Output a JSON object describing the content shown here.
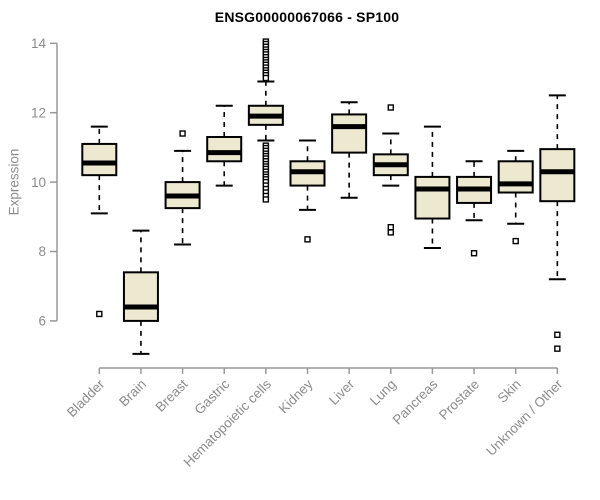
{
  "chart_data": {
    "type": "boxplot",
    "title": "ENSG00000067066 - SP100",
    "ylabel": "Expression",
    "xlabel": "",
    "ylim": [
      5,
      14.2
    ],
    "yticks": [
      6,
      8,
      10,
      12,
      14
    ],
    "grid": false,
    "legend": "none",
    "categories": [
      "Bladder",
      "Brain",
      "Breast",
      "Gastric",
      "Hematopoietic cells",
      "Kidney",
      "Liver",
      "Lung",
      "Pancreas",
      "Prostate",
      "Skin",
      "Unknown / Other"
    ],
    "boxes": [
      {
        "category": "Bladder",
        "low": 9.1,
        "q1": 10.2,
        "median": 10.55,
        "q3": 11.1,
        "high": 11.6,
        "outliers": [
          6.2
        ]
      },
      {
        "category": "Brain",
        "low": 5.05,
        "q1": 6.0,
        "median": 6.4,
        "q3": 7.4,
        "high": 8.6,
        "outliers": []
      },
      {
        "category": "Breast",
        "low": 8.2,
        "q1": 9.25,
        "median": 9.6,
        "q3": 10.0,
        "high": 10.9,
        "outliers": [
          11.4
        ]
      },
      {
        "category": "Gastric",
        "low": 9.9,
        "q1": 10.6,
        "median": 10.85,
        "q3": 11.3,
        "high": 12.2,
        "outliers": []
      },
      {
        "category": "Hematopoietic cells",
        "low": 11.2,
        "q1": 11.65,
        "median": 11.9,
        "q3": 12.2,
        "high": 12.9,
        "outliers": [
          14.05,
          13.98,
          13.9,
          13.82,
          13.75,
          13.68,
          13.6,
          13.52,
          13.45,
          13.38,
          13.3,
          13.22,
          13.15,
          13.08,
          13.0,
          11.05,
          10.98,
          10.9,
          10.82,
          10.75,
          10.68,
          10.6,
          10.52,
          10.45,
          10.38,
          10.3,
          10.22,
          10.15,
          10.08,
          10.0,
          9.9,
          9.8,
          9.7,
          9.6,
          9.5
        ]
      },
      {
        "category": "Kidney",
        "low": 9.2,
        "q1": 9.9,
        "median": 10.3,
        "q3": 10.6,
        "high": 11.2,
        "outliers": [
          8.35
        ]
      },
      {
        "category": "Liver",
        "low": 9.55,
        "q1": 10.85,
        "median": 11.6,
        "q3": 11.95,
        "high": 12.3,
        "outliers": []
      },
      {
        "category": "Lung",
        "low": 9.9,
        "q1": 10.2,
        "median": 10.5,
        "q3": 10.8,
        "high": 11.4,
        "outliers": [
          12.15,
          8.7,
          8.55
        ]
      },
      {
        "category": "Pancreas",
        "low": 8.1,
        "q1": 8.95,
        "median": 9.8,
        "q3": 10.15,
        "high": 11.6,
        "outliers": []
      },
      {
        "category": "Prostate",
        "low": 8.9,
        "q1": 9.4,
        "median": 9.8,
        "q3": 10.15,
        "high": 10.6,
        "outliers": [
          7.95
        ]
      },
      {
        "category": "Skin",
        "low": 8.8,
        "q1": 9.7,
        "median": 9.95,
        "q3": 10.6,
        "high": 10.9,
        "outliers": [
          8.3
        ]
      },
      {
        "category": "Unknown / Other",
        "low": 7.2,
        "q1": 9.45,
        "median": 10.3,
        "q3": 10.95,
        "high": 12.5,
        "outliers": [
          5.6,
          5.2
        ]
      }
    ],
    "colors": {
      "box_fill": "#EDE8D0",
      "box_stroke": "#000000",
      "median": "#000000",
      "axis_line": "#999999",
      "tick_label": "#8c8c8c",
      "title": "#000000",
      "background": "#ffffff"
    }
  }
}
